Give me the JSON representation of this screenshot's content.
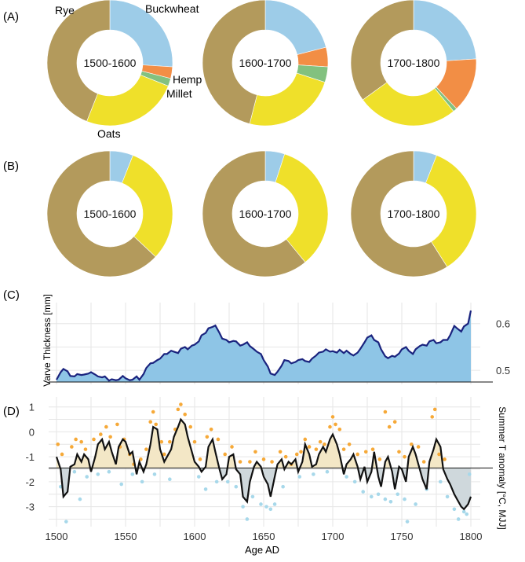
{
  "colors": {
    "Rye": "#b39a5c",
    "Buckwheat": "#9dcce8",
    "Hemp": "#f28e45",
    "Millet": "#82c17f",
    "Oats": "#efe02a",
    "varve_fill": "#8ec5e6",
    "varve_line": "#1a237e",
    "above_fill": "#f3e7c6",
    "below_fill": "#cfd8dc",
    "dot_warm": "#f6a938",
    "dot_cold": "#a7d8ea"
  },
  "chart_data": [
    {
      "id": "A",
      "type": "pie",
      "panel_label": "(A)",
      "labels": {
        "Rye": "Rye",
        "Buckwheat": "Buckwheat",
        "Hemp": "Hemp",
        "Millet": "Millet",
        "Oats": "Oats"
      },
      "donuts": [
        {
          "period": "1500-1600",
          "slices": [
            [
              "Buckwheat",
              26
            ],
            [
              "Hemp",
              3
            ],
            [
              "Millet",
              2
            ],
            [
              "Oats",
              25
            ],
            [
              "Rye",
              44
            ]
          ]
        },
        {
          "period": "1600-1700",
          "slices": [
            [
              "Buckwheat",
              21
            ],
            [
              "Hemp",
              5
            ],
            [
              "Millet",
              4
            ],
            [
              "Oats",
              24
            ],
            [
              "Rye",
              46
            ]
          ]
        },
        {
          "period": "1700-1800",
          "slices": [
            [
              "Buckwheat",
              24
            ],
            [
              "Hemp",
              14
            ],
            [
              "Millet",
              1
            ],
            [
              "Oats",
              26
            ],
            [
              "Rye",
              35
            ]
          ]
        }
      ]
    },
    {
      "id": "B",
      "type": "pie",
      "panel_label": "(B)",
      "donuts": [
        {
          "period": "1500-1600",
          "slices": [
            [
              "Buckwheat",
              6
            ],
            [
              "Oats",
              31
            ],
            [
              "Rye",
              63
            ]
          ]
        },
        {
          "period": "1600-1700",
          "slices": [
            [
              "Buckwheat",
              5
            ],
            [
              "Oats",
              34
            ],
            [
              "Rye",
              61
            ]
          ]
        },
        {
          "period": "1700-1800",
          "slices": [
            [
              "Buckwheat",
              6
            ],
            [
              "Oats",
              35
            ],
            [
              "Rye",
              59
            ]
          ]
        }
      ]
    },
    {
      "id": "C",
      "type": "area",
      "panel_label": "(C)",
      "ylabel": "Varve Thickness [mm]",
      "xlim": [
        1500,
        1800
      ],
      "ylim": [
        0.47,
        0.645
      ],
      "yticks": [
        0.5,
        0.6
      ],
      "baseline": 0.475,
      "x": [
        1500,
        1503,
        1505,
        1508,
        1510,
        1513,
        1515,
        1518,
        1520,
        1523,
        1525,
        1528,
        1530,
        1533,
        1535,
        1538,
        1540,
        1543,
        1545,
        1548,
        1550,
        1553,
        1555,
        1558,
        1560,
        1563,
        1565,
        1568,
        1570,
        1573,
        1575,
        1578,
        1580,
        1583,
        1585,
        1588,
        1590,
        1593,
        1595,
        1598,
        1600,
        1603,
        1605,
        1608,
        1610,
        1613,
        1615,
        1618,
        1620,
        1623,
        1625,
        1628,
        1630,
        1633,
        1635,
        1638,
        1640,
        1643,
        1645,
        1648,
        1650,
        1653,
        1655,
        1658,
        1660,
        1663,
        1665,
        1668,
        1670,
        1673,
        1675,
        1678,
        1680,
        1683,
        1685,
        1688,
        1690,
        1693,
        1695,
        1698,
        1700,
        1703,
        1705,
        1708,
        1710,
        1713,
        1715,
        1718,
        1720,
        1723,
        1725,
        1728,
        1730,
        1733,
        1735,
        1738,
        1740,
        1743,
        1745,
        1748,
        1750,
        1753,
        1755,
        1758,
        1760,
        1763,
        1765,
        1768,
        1770,
        1773,
        1775,
        1778,
        1780,
        1783,
        1785,
        1788,
        1790,
        1793,
        1795,
        1798,
        1800
      ],
      "y": [
        0.48,
        0.496,
        0.503,
        0.498,
        0.488,
        0.487,
        0.492,
        0.49,
        0.491,
        0.493,
        0.496,
        0.491,
        0.487,
        0.485,
        0.487,
        0.478,
        0.481,
        0.479,
        0.48,
        0.488,
        0.483,
        0.479,
        0.48,
        0.487,
        0.48,
        0.492,
        0.505,
        0.515,
        0.516,
        0.522,
        0.525,
        0.535,
        0.535,
        0.542,
        0.54,
        0.537,
        0.546,
        0.55,
        0.545,
        0.553,
        0.555,
        0.562,
        0.575,
        0.58,
        0.59,
        0.593,
        0.596,
        0.58,
        0.568,
        0.565,
        0.56,
        0.563,
        0.562,
        0.553,
        0.555,
        0.56,
        0.552,
        0.545,
        0.54,
        0.535,
        0.522,
        0.508,
        0.493,
        0.49,
        0.497,
        0.51,
        0.522,
        0.52,
        0.515,
        0.518,
        0.522,
        0.524,
        0.52,
        0.518,
        0.525,
        0.532,
        0.538,
        0.54,
        0.545,
        0.54,
        0.541,
        0.538,
        0.544,
        0.537,
        0.542,
        0.535,
        0.532,
        0.538,
        0.546,
        0.56,
        0.57,
        0.575,
        0.565,
        0.56,
        0.545,
        0.53,
        0.526,
        0.531,
        0.529,
        0.536,
        0.545,
        0.55,
        0.542,
        0.535,
        0.545,
        0.552,
        0.555,
        0.553,
        0.562,
        0.565,
        0.558,
        0.56,
        0.565,
        0.565,
        0.575,
        0.595,
        0.59,
        0.583,
        0.594,
        0.6,
        0.628
      ]
    },
    {
      "id": "D",
      "type": "line",
      "panel_label": "(D)",
      "ylabel": "Summer T anomaly [°C, MJJ]",
      "xlabel": "Age AD",
      "xlim": [
        1500,
        1800
      ],
      "ylim": [
        -3.8,
        1.4
      ],
      "xticks": [
        1500,
        1550,
        1600,
        1650,
        1700,
        1750,
        1800
      ],
      "yticks": [
        1,
        0,
        -1,
        -2,
        -3
      ],
      "reference_line": -1.45,
      "x": [
        1500,
        1503,
        1505,
        1508,
        1510,
        1513,
        1515,
        1518,
        1520,
        1523,
        1525,
        1528,
        1530,
        1533,
        1535,
        1538,
        1540,
        1543,
        1545,
        1548,
        1550,
        1553,
        1555,
        1558,
        1560,
        1563,
        1565,
        1568,
        1570,
        1573,
        1575,
        1578,
        1580,
        1583,
        1585,
        1588,
        1590,
        1593,
        1595,
        1598,
        1600,
        1603,
        1605,
        1608,
        1610,
        1613,
        1615,
        1618,
        1620,
        1623,
        1625,
        1628,
        1630,
        1633,
        1635,
        1638,
        1640,
        1643,
        1645,
        1648,
        1650,
        1653,
        1655,
        1658,
        1660,
        1663,
        1665,
        1668,
        1670,
        1673,
        1675,
        1678,
        1680,
        1683,
        1685,
        1688,
        1690,
        1693,
        1695,
        1698,
        1700,
        1703,
        1705,
        1708,
        1710,
        1713,
        1715,
        1718,
        1720,
        1723,
        1725,
        1728,
        1730,
        1733,
        1735,
        1738,
        1740,
        1743,
        1745,
        1748,
        1750,
        1753,
        1755,
        1758,
        1760,
        1763,
        1765,
        1768,
        1770,
        1773,
        1775,
        1778,
        1780,
        1783,
        1785,
        1788,
        1790,
        1793,
        1795,
        1798,
        1800
      ],
      "y": [
        -1.0,
        -1.5,
        -2.6,
        -2.4,
        -1.4,
        -1.3,
        -0.9,
        -1.2,
        -0.9,
        -1.1,
        -1.6,
        -1.0,
        -0.5,
        -0.3,
        -0.7,
        -0.4,
        -0.8,
        -1.3,
        -0.6,
        -0.3,
        -0.4,
        -0.9,
        -0.8,
        -1.7,
        -1.2,
        -1.6,
        -1.3,
        -0.5,
        0.2,
        0.1,
        -0.7,
        -1.2,
        -1.0,
        -0.7,
        -0.2,
        0.2,
        0.5,
        0.3,
        -0.2,
        -0.8,
        -1.2,
        -1.4,
        -1.6,
        -1.4,
        -0.6,
        -0.3,
        -0.8,
        -1.5,
        -1.9,
        -1.7,
        -1.0,
        -0.9,
        -1.5,
        -1.7,
        -2.6,
        -2.8,
        -2.0,
        -1.4,
        -1.2,
        -1.4,
        -1.8,
        -2.1,
        -2.6,
        -1.8,
        -1.3,
        -1.1,
        -1.5,
        -1.2,
        -1.3,
        -1.1,
        -1.6,
        -1.2,
        -0.5,
        -0.9,
        -1.4,
        -1.3,
        -0.9,
        -0.6,
        -0.8,
        -0.3,
        -0.1,
        -0.5,
        -0.9,
        -1.7,
        -1.3,
        -1.1,
        -0.9,
        -1.4,
        -1.9,
        -1.4,
        -2.0,
        -1.6,
        -0.8,
        -1.8,
        -2.2,
        -1.2,
        -1.0,
        -1.6,
        -2.3,
        -1.4,
        -1.5,
        -2.0,
        -1.0,
        -0.6,
        -0.9,
        -1.5,
        -1.9,
        -2.3,
        -1.2,
        -0.7,
        -0.3,
        -0.6,
        -1.5,
        -1.9,
        -2.1,
        -2.5,
        -2.7,
        -3.0,
        -3.1,
        -2.9,
        -2.6
      ],
      "dots_warm": [
        [
          1501,
          -0.5
        ],
        [
          1504,
          -0.9
        ],
        [
          1511,
          -0.6
        ],
        [
          1514,
          -0.3
        ],
        [
          1518,
          -0.4
        ],
        [
          1521,
          -0.7
        ],
        [
          1527,
          -0.3
        ],
        [
          1532,
          -0.1
        ],
        [
          1536,
          0.2
        ],
        [
          1539,
          -0.2
        ],
        [
          1544,
          0.3
        ],
        [
          1546,
          -0.6
        ],
        [
          1549,
          -0.3
        ],
        [
          1553,
          -0.9
        ],
        [
          1556,
          -1.3
        ],
        [
          1561,
          -1.1
        ],
        [
          1565,
          -0.7
        ],
        [
          1568,
          0.4
        ],
        [
          1570,
          0.8
        ],
        [
          1572,
          0.3
        ],
        [
          1576,
          -0.4
        ],
        [
          1578,
          -0.9
        ],
        [
          1582,
          -0.4
        ],
        [
          1586,
          0.1
        ],
        [
          1588,
          0.9
        ],
        [
          1590,
          1.1
        ],
        [
          1593,
          0.7
        ],
        [
          1597,
          0.2
        ],
        [
          1600,
          -0.4
        ],
        [
          1604,
          -1.1
        ],
        [
          1609,
          -0.2
        ],
        [
          1612,
          0.1
        ],
        [
          1617,
          -0.3
        ],
        [
          1622,
          -0.9
        ],
        [
          1627,
          -0.6
        ],
        [
          1633,
          -1.2
        ],
        [
          1640,
          -1.2
        ],
        [
          1644,
          -0.8
        ],
        [
          1650,
          -1.1
        ],
        [
          1656,
          -1.2
        ],
        [
          1662,
          -0.8
        ],
        [
          1666,
          -1.0
        ],
        [
          1670,
          -1.3
        ],
        [
          1674,
          -0.9
        ],
        [
          1677,
          -0.8
        ],
        [
          1680,
          -0.3
        ],
        [
          1683,
          -0.6
        ],
        [
          1688,
          -0.7
        ],
        [
          1691,
          -0.4
        ],
        [
          1694,
          -0.5
        ],
        [
          1698,
          0.2
        ],
        [
          1700,
          0.6
        ],
        [
          1702,
          0.3
        ],
        [
          1705,
          0.1
        ],
        [
          1708,
          -0.7
        ],
        [
          1712,
          -0.5
        ],
        [
          1718,
          -0.9
        ],
        [
          1724,
          -0.8
        ],
        [
          1729,
          -0.7
        ],
        [
          1734,
          -1.1
        ],
        [
          1738,
          0.8
        ],
        [
          1741,
          0.2
        ],
        [
          1745,
          0.4
        ],
        [
          1748,
          -0.8
        ],
        [
          1752,
          -1.0
        ],
        [
          1757,
          -0.5
        ],
        [
          1762,
          -0.6
        ],
        [
          1766,
          -1.2
        ],
        [
          1772,
          0.6
        ],
        [
          1774,
          0.9
        ],
        [
          1777,
          -0.9
        ],
        [
          1781,
          -1.1
        ]
      ],
      "dots_cold": [
        [
          1503,
          -2.2
        ],
        [
          1507,
          -3.6
        ],
        [
          1513,
          -1.6
        ],
        [
          1517,
          -2.7
        ],
        [
          1522,
          -1.8
        ],
        [
          1530,
          -1.7
        ],
        [
          1538,
          -1.6
        ],
        [
          1547,
          -2.1
        ],
        [
          1555,
          -1.7
        ],
        [
          1562,
          -2.0
        ],
        [
          1571,
          -1.7
        ],
        [
          1582,
          -1.9
        ],
        [
          1603,
          -1.8
        ],
        [
          1608,
          -2.3
        ],
        [
          1616,
          -2.0
        ],
        [
          1624,
          -2.0
        ],
        [
          1630,
          -2.2
        ],
        [
          1635,
          -3.0
        ],
        [
          1638,
          -3.5
        ],
        [
          1642,
          -2.6
        ],
        [
          1648,
          -2.9
        ],
        [
          1652,
          -3.0
        ],
        [
          1655,
          -3.1
        ],
        [
          1658,
          -2.9
        ],
        [
          1664,
          -2.2
        ],
        [
          1676,
          -1.8
        ],
        [
          1686,
          -1.7
        ],
        [
          1696,
          -1.6
        ],
        [
          1710,
          -1.8
        ],
        [
          1716,
          -2.0
        ],
        [
          1722,
          -2.4
        ],
        [
          1728,
          -2.6
        ],
        [
          1733,
          -2.5
        ],
        [
          1738,
          -2.7
        ],
        [
          1742,
          -2.8
        ],
        [
          1747,
          -2.5
        ],
        [
          1752,
          -2.7
        ],
        [
          1754,
          -3.6
        ],
        [
          1760,
          -2.9
        ],
        [
          1768,
          -2.3
        ],
        [
          1778,
          -2.0
        ],
        [
          1783,
          -2.6
        ],
        [
          1788,
          -3.1
        ],
        [
          1791,
          -3.5
        ],
        [
          1795,
          -3.2
        ],
        [
          1797,
          -3.3
        ],
        [
          1799,
          -1.7
        ]
      ]
    }
  ]
}
